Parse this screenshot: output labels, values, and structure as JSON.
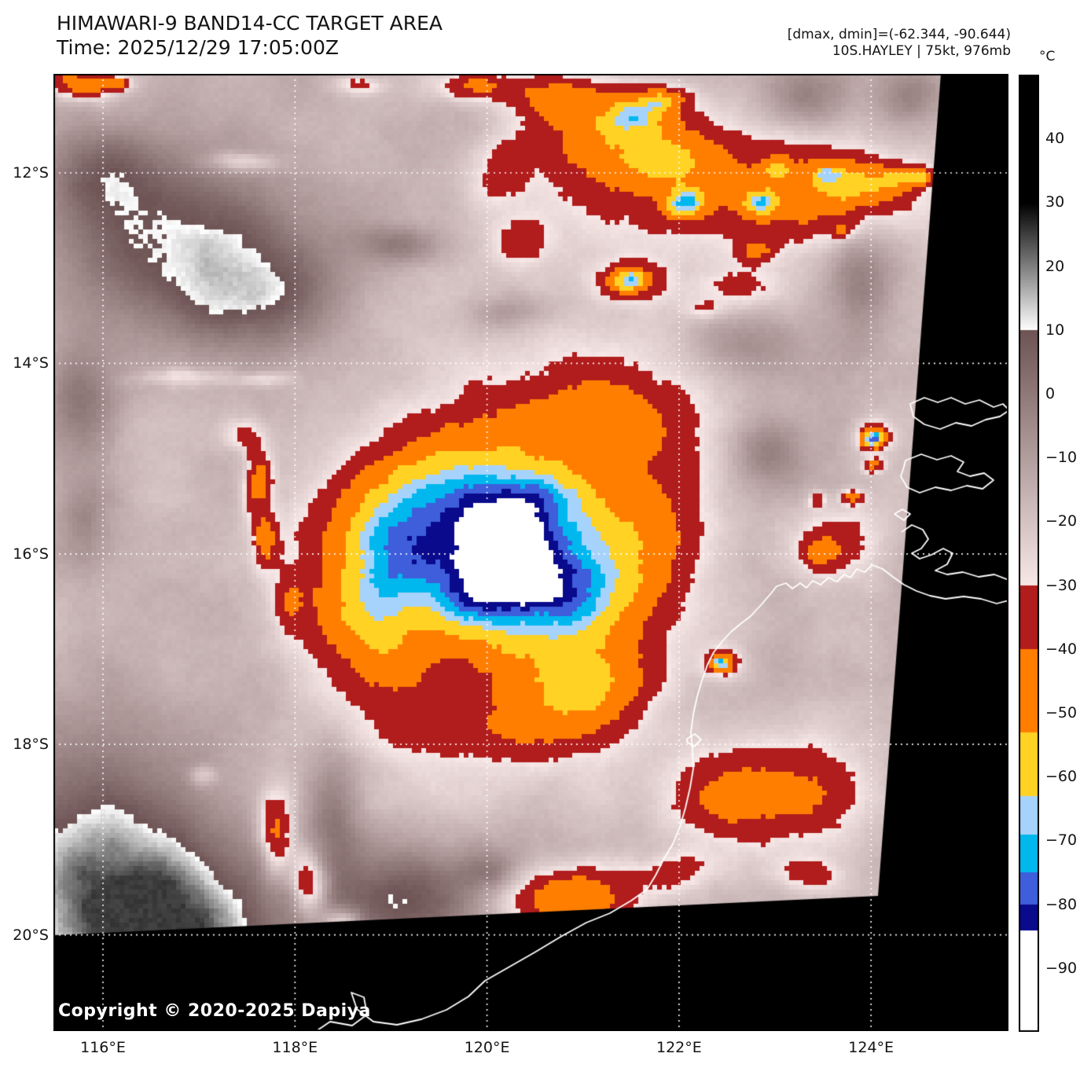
{
  "header": {
    "title": "HIMAWARI-9 BAND14-CC TARGET AREA",
    "time": "Time: 2025/12/29 17:05:00Z",
    "stats": "[dmax, dmin]=(-62.344, -90.644)",
    "storm": "10S.HAYLEY | 75kt, 976mb"
  },
  "colorbar": {
    "unit": "°C",
    "top_value": 50,
    "bottom_value": -100,
    "ticks": [
      {
        "label": "40",
        "value": 40
      },
      {
        "label": "30",
        "value": 30
      },
      {
        "label": "20",
        "value": 20
      },
      {
        "label": "10",
        "value": 10
      },
      {
        "label": "0",
        "value": 0
      },
      {
        "label": "−10",
        "value": -10
      },
      {
        "label": "−20",
        "value": -20
      },
      {
        "label": "−30",
        "value": -30
      },
      {
        "label": "−40",
        "value": -40
      },
      {
        "label": "−50",
        "value": -50
      },
      {
        "label": "−60",
        "value": -60
      },
      {
        "label": "−70",
        "value": -70
      },
      {
        "label": "−80",
        "value": -80
      },
      {
        "label": "−90",
        "value": -90
      }
    ],
    "segments": [
      {
        "from": 50,
        "to": 30,
        "type": "solid",
        "color": "#000000"
      },
      {
        "from": 30,
        "to": 10,
        "type": "lerp",
        "color_from": "#000000",
        "color_to": "#ffffff"
      },
      {
        "from": 10,
        "to": -30,
        "type": "lerp",
        "color_from": "#6e5454",
        "color_to": "#f8e8e8"
      },
      {
        "from": -30,
        "to": -40,
        "type": "solid",
        "color": "#b11c1c"
      },
      {
        "from": -40,
        "to": -53,
        "type": "solid",
        "color": "#ff7e00"
      },
      {
        "from": -53,
        "to": -63,
        "type": "solid",
        "color": "#ffd224"
      },
      {
        "from": -63,
        "to": -69,
        "type": "solid",
        "color": "#a6d3fc"
      },
      {
        "from": -69,
        "to": -75,
        "type": "solid",
        "color": "#00b8ee"
      },
      {
        "from": -75,
        "to": -80,
        "type": "solid",
        "color": "#3e5edb"
      },
      {
        "from": -80,
        "to": -84,
        "type": "solid",
        "color": "#0a0a8c"
      },
      {
        "from": -84,
        "to": -100,
        "type": "solid",
        "color": "#ffffff"
      }
    ]
  },
  "map": {
    "x_ticks": [
      {
        "label": "116°E",
        "lon": 116
      },
      {
        "label": "118°E",
        "lon": 118
      },
      {
        "label": "120°E",
        "lon": 120
      },
      {
        "label": "122°E",
        "lon": 122
      },
      {
        "label": "124°E",
        "lon": 124
      }
    ],
    "y_ticks": [
      {
        "label": "12°S",
        "lat": 12
      },
      {
        "label": "14°S",
        "lat": 14
      },
      {
        "label": "16°S",
        "lat": 16
      },
      {
        "label": "18°S",
        "lat": 18
      },
      {
        "label": "20°S",
        "lat": 20
      }
    ],
    "copyright": "Copyright © 2020-2025 Dapiya"
  }
}
